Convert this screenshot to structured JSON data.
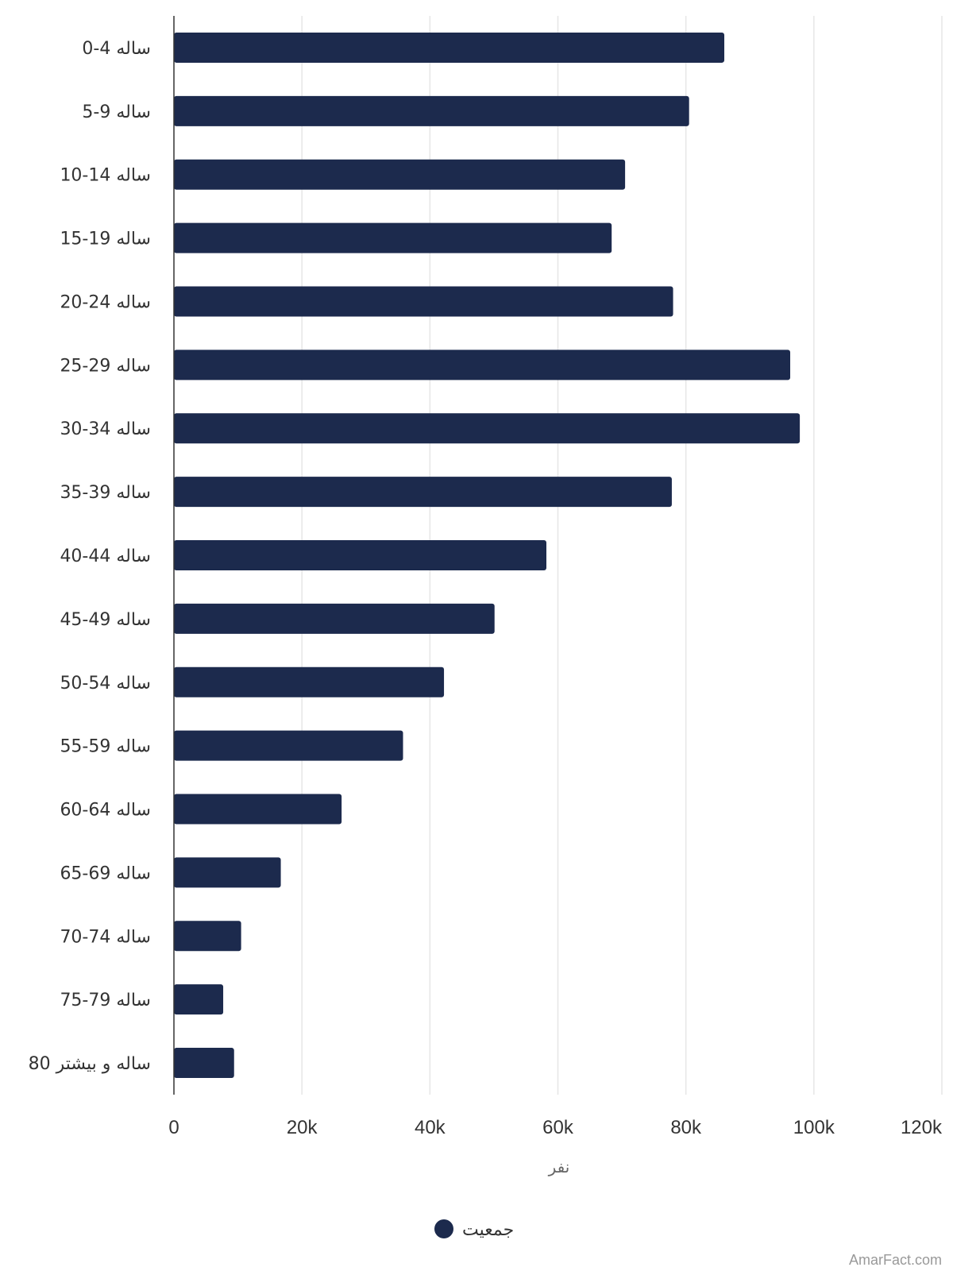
{
  "chart_data": {
    "type": "bar",
    "orientation": "horizontal",
    "categories": [
      "0-4 ساله",
      "5-9 ساله",
      "10-14 ساله",
      "15-19 ساله",
      "20-24 ساله",
      "25-29 ساله",
      "30-34 ساله",
      "35-39 ساله",
      "40-44 ساله",
      "45-49 ساله",
      "50-54 ساله",
      "55-59 ساله",
      "60-64 ساله",
      "65-69 ساله",
      "70-74 ساله",
      "75-79 ساله",
      "80 ساله و بیشتر"
    ],
    "series": [
      {
        "name": "جمعیت",
        "color": "#1c2a4d",
        "values": [
          86000,
          80500,
          70500,
          68400,
          78000,
          96300,
          97800,
          77800,
          58200,
          50100,
          42200,
          35800,
          26200,
          16700,
          10500,
          7700,
          9400
        ]
      }
    ],
    "xlabel": "نفر",
    "ylabel": "",
    "xlim": [
      0,
      120000
    ],
    "x_ticks": [
      0,
      20000,
      40000,
      60000,
      80000,
      100000,
      120000
    ],
    "x_tick_labels": [
      "0",
      "20k",
      "40k",
      "60k",
      "80k",
      "100k",
      "120k"
    ],
    "grid": "vertical",
    "legend": "bottom-center"
  },
  "credit": "AmarFact.com",
  "colors": {
    "bar": "#1c2a4d",
    "grid": "#e6e6e6",
    "axis": "#333333"
  }
}
